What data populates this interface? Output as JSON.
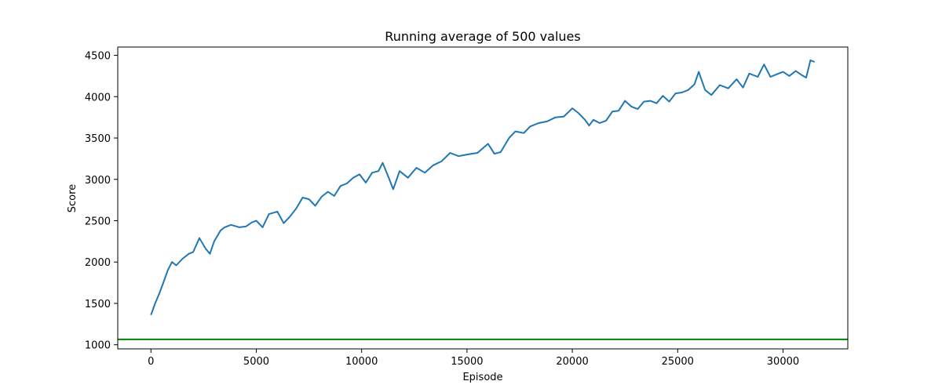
{
  "chart_data": {
    "type": "line",
    "title": "Running average of 500 values",
    "xlabel": "Episode",
    "ylabel": "Score",
    "xlim": [
      -1575,
      33075
    ],
    "ylim": [
      950,
      4600
    ],
    "xticks": [
      0,
      5000,
      10000,
      15000,
      20000,
      25000,
      30000
    ],
    "yticks": [
      1000,
      1500,
      2000,
      2500,
      3000,
      3500,
      4000,
      4500
    ],
    "grid": false,
    "series": [
      {
        "color": "#1f77b4",
        "x": [
          0,
          200,
          400,
          600,
          800,
          1000,
          1200,
          1500,
          1800,
          2000,
          2300,
          2600,
          2800,
          3000,
          3300,
          3500,
          3800,
          4200,
          4500,
          4800,
          5000,
          5300,
          5600,
          6000,
          6300,
          6600,
          6900,
          7200,
          7500,
          7800,
          8100,
          8400,
          8700,
          9000,
          9300,
          9600,
          9900,
          10200,
          10500,
          10800,
          11000,
          11300,
          11500,
          11800,
          12200,
          12600,
          13000,
          13400,
          13800,
          14200,
          14600,
          15000,
          15500,
          16000,
          16300,
          16600,
          17000,
          17300,
          17700,
          18000,
          18400,
          18800,
          19200,
          19600,
          20000,
          20300,
          20600,
          20800,
          21000,
          21300,
          21600,
          21900,
          22200,
          22500,
          22800,
          23100,
          23400,
          23700,
          24000,
          24300,
          24600,
          24900,
          25200,
          25500,
          25800,
          26000,
          26300,
          26600,
          27000,
          27400,
          27800,
          28100,
          28400,
          28800,
          29100,
          29400,
          29700,
          30000,
          30300,
          30600,
          30900,
          31100,
          31300,
          31500
        ],
        "y": [
          1360,
          1500,
          1620,
          1760,
          1900,
          2000,
          1960,
          2040,
          2100,
          2120,
          2290,
          2160,
          2100,
          2250,
          2380,
          2420,
          2450,
          2420,
          2430,
          2480,
          2500,
          2420,
          2580,
          2610,
          2470,
          2550,
          2650,
          2780,
          2760,
          2680,
          2790,
          2850,
          2800,
          2920,
          2950,
          3020,
          3060,
          2960,
          3080,
          3100,
          3200,
          3010,
          2880,
          3100,
          3020,
          3140,
          3080,
          3170,
          3220,
          3320,
          3280,
          3300,
          3320,
          3430,
          3310,
          3330,
          3500,
          3580,
          3560,
          3640,
          3680,
          3700,
          3750,
          3760,
          3860,
          3800,
          3720,
          3650,
          3720,
          3680,
          3710,
          3820,
          3830,
          3950,
          3880,
          3850,
          3940,
          3950,
          3920,
          4010,
          3940,
          4040,
          4050,
          4080,
          4150,
          4300,
          4080,
          4020,
          4140,
          4100,
          4210,
          4110,
          4280,
          4240,
          4390,
          4240,
          4270,
          4300,
          4250,
          4310,
          4260,
          4230,
          4440,
          4420
        ]
      }
    ],
    "hlines": [
      {
        "y": 1065,
        "color": "#008000"
      }
    ]
  }
}
